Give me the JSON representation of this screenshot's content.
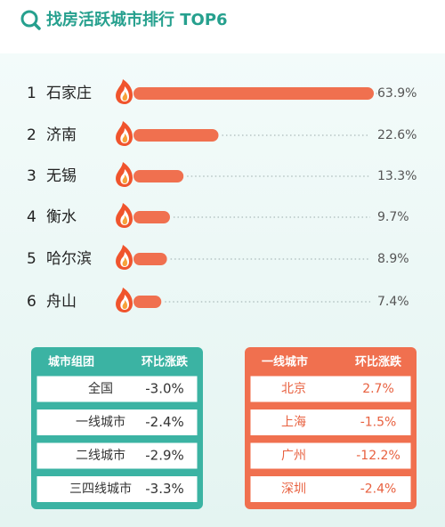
{
  "chart_data": {
    "type": "bar",
    "title": "找房活跃城市排行 TOP6",
    "ranks": [
      1,
      2,
      3,
      4,
      5,
      6
    ],
    "categories": [
      "石家庄",
      "济南",
      "无锡",
      "衡水",
      "哈尔滨",
      "舟山"
    ],
    "values": [
      63.9,
      22.6,
      13.3,
      9.7,
      8.9,
      7.4
    ],
    "value_labels": [
      "63.9%",
      "22.6%",
      "13.3%",
      "9.7%",
      "8.9%",
      "7.4%"
    ],
    "color": "#f0704f"
  },
  "tables": [
    {
      "header": [
        "城市组团",
        "环比涨跌"
      ],
      "rows": [
        [
          "全国",
          "-3.0%"
        ],
        [
          "一线城市",
          "-2.4%"
        ],
        [
          "二线城市",
          "-2.9%"
        ],
        [
          "三四线城市",
          "-3.3%"
        ]
      ]
    },
    {
      "header": [
        "一线城市",
        "环比涨跌"
      ],
      "rows": [
        [
          "北京",
          "2.7%"
        ],
        [
          "上海",
          "-1.5%"
        ],
        [
          "广州",
          "-12.2%"
        ],
        [
          "深圳",
          "-2.4%"
        ]
      ]
    }
  ]
}
